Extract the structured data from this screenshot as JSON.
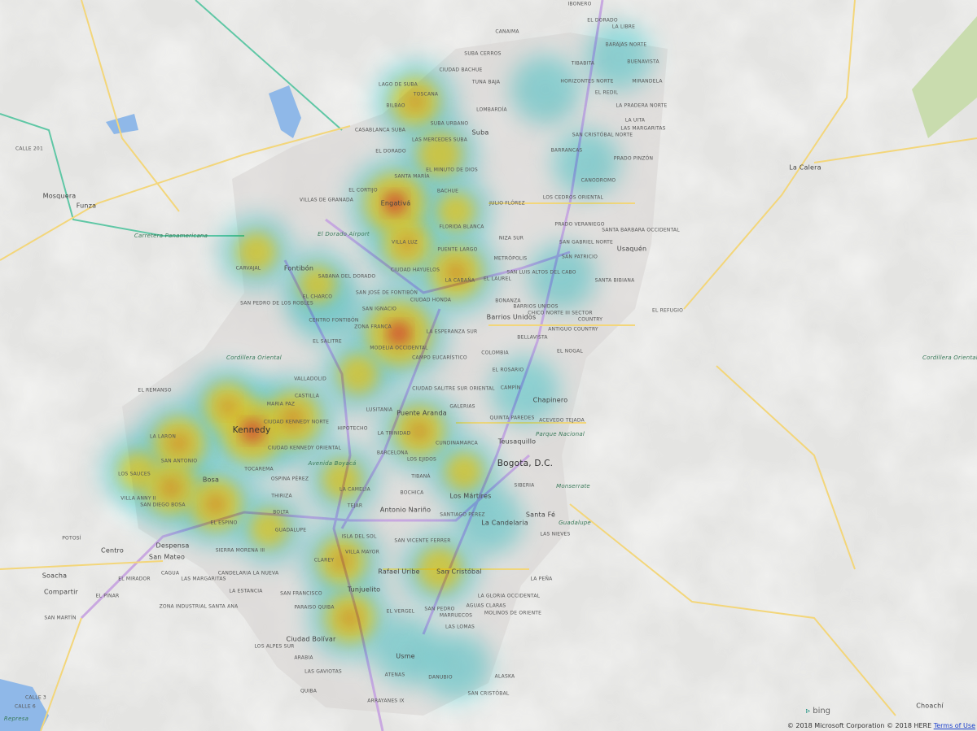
{
  "map": {
    "provider": "bing",
    "layer": "heatmap",
    "heat_colors": [
      "#7fe6ea",
      "#f4e33a",
      "#f59b2c",
      "#e8344a"
    ],
    "road_colors": {
      "highway": "#c9a8e0",
      "arterial": "#f3d67a",
      "green_road": "#5fc7a5"
    }
  },
  "labels": [
    "Kennedy",
    "Engativá",
    "Bosa",
    "Puente Aranda",
    "Teusaquillo",
    "Bogota, D.C.",
    "Los Mártires",
    "Antonio Nariño",
    "La Candelaria",
    "Santa Fé",
    "Rafael Uribe",
    "San Cristóbal",
    "Tunjuelito",
    "Ciudad Bolívar",
    "Usme",
    "Chapinero",
    "Barrios Unidos",
    "Suba",
    "Usaquén",
    "Fontibón",
    "Mosquera",
    "Funza",
    "La Calera",
    "Soacha",
    "Centro",
    "San Mateo",
    "Despensa",
    "Compartir",
    "Choachí",
    "Carretera Panamericana",
    "Cordillera Oriental",
    "Cordillera Oriental",
    "Parque Nacional",
    "Monserrate",
    "Guadalupe",
    "Avenida Boyacá",
    "El Dorado Airport",
    "Represa",
    "Ciudad Kennedy Norte",
    "Ciudad Kennedy Oriental",
    "Tocarema",
    "Maria Paz",
    "Castilla",
    "Valladolid",
    "Ciudad Salitre Sur Oriental",
    "Lusitania",
    "Hipotecho",
    "La Trinidad",
    "Barcelona",
    "Los Ejidos",
    "Cundinamarca",
    "Tibaná",
    "Bochica",
    "La Camelia",
    "Tejar",
    "Ospina Pérez",
    "Thiriza",
    "Bolta",
    "Guadalupe",
    "Isla del Sol",
    "Villa Mayor",
    "Clarey",
    "San Vicente Ferrer",
    "Santiago Pérez",
    "El Vergel",
    "Marruecos",
    "La Gloria Occidental",
    "Molinos de Oriente",
    "Aguas Claras",
    "San Pedro",
    "Las Lomas",
    "Atenas",
    "Danubio",
    "Arrayanes IX",
    "Alaska",
    "San Cristóbal",
    "Las Gaviotas",
    "Quiba",
    "Arabia",
    "Los Alpes Sur",
    "Paraiso Quiba",
    "San Francisco",
    "Candelaria la Nueva",
    "Sierra Morena III",
    "El Espino",
    "La Estancia",
    "Potosí",
    "El Mirador",
    "Cagua",
    "El Pinar",
    "San Martín",
    "Zona Industrial Santa Ana",
    "Las Margaritas",
    "La Laron",
    "San Antonio",
    "Los Sauces",
    "San Diego Bosa",
    "Villa Anny II",
    "El Remanso",
    "Carvajal",
    "El Charco",
    "Centro Fontibón",
    "San Pedro de los Robles",
    "Zona Franca",
    "Modelia Occidental",
    "La Esperanza Sur",
    "Campo Eucarístico",
    "El Salitre",
    "Ciudad Hayuelos",
    "Villa Luz",
    "Florida Blanca",
    "El Minuto de Dios",
    "Ciudad Honda",
    "La Cabaña",
    "El Laurel",
    "Metrópolis",
    "Julio Flórez",
    "Niza Sur",
    "Puente Largo",
    "Santa María",
    "Bachue",
    "Ciudad Bachue",
    "Tuna Baja",
    "Suba Cerros",
    "Las Mercedes Suba",
    "Lago de Suba",
    "Bilbao",
    "Toscana",
    "Lombardía",
    "Suba Urbano",
    "Casablanca Suba",
    "El Dorado",
    "El Cortijo",
    "Villas de Granada",
    "Sabana del Dorado",
    "San José de Fontibón",
    "San Ignacio",
    "Bonanza",
    "Barrios Unidos",
    "Antiguo Country",
    "El Nogal",
    "Bellavista",
    "Colombia",
    "El Rosario",
    "Campín",
    "Galerias",
    "Quinta Paredes",
    "Acevedo Tejada",
    "Siberia",
    "Las Nieves",
    "La Peña",
    "El Dorado",
    "Canaima",
    "Barajas Norte",
    "Buenavista",
    "Horizontes Norte",
    "La Libre",
    "Tibabita",
    "Mirandela",
    "El Redil",
    "La Pradera Norte",
    "La Uita",
    "San Cristóbal Norte",
    "Las Margaritas",
    "Barrancas",
    "Prado Pinzón",
    "Los Cedros Oriental",
    "Canodromo",
    "Prado Veraniego",
    "Santa Barbara Occidental",
    "San Gabriel Norte",
    "San Patricio",
    "Santa Bibiana",
    "Chico Norte III Sector",
    "Country",
    "El Refugio",
    "San Luis Altos del Cabo",
    "Ibonero",
    "Calle 201",
    "Calle 6",
    "Calle 3"
  ],
  "bing_logo": "bing",
  "attribution": {
    "text": "© 2018 Microsoft Corporation © 2018 HERE",
    "terms_link": "Terms of Use"
  }
}
